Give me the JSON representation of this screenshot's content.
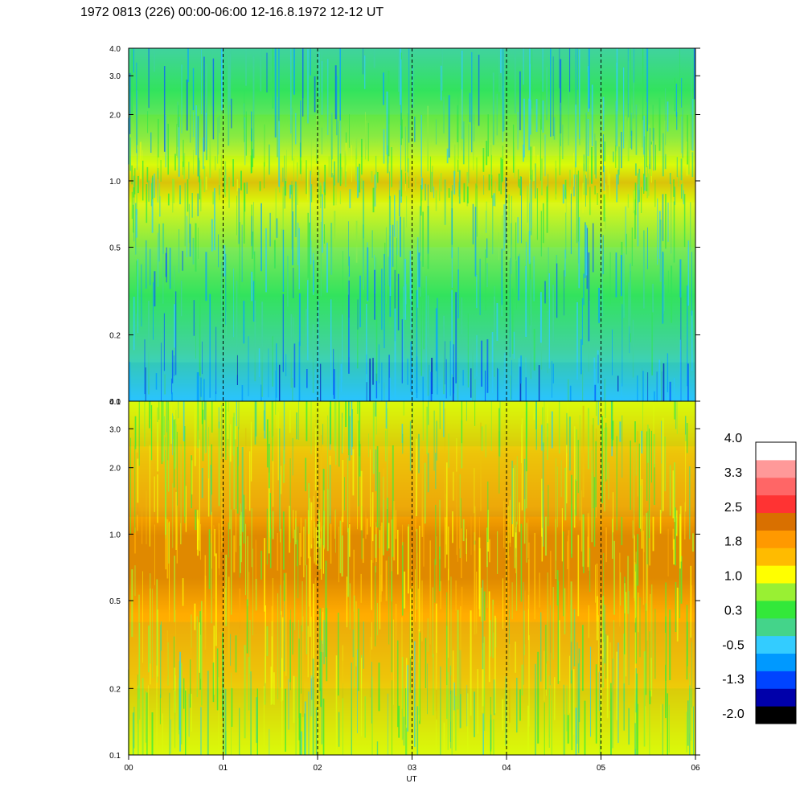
{
  "chart_data": {
    "type": "heatmap",
    "title": "1972 0813 (226) 00:00-06:00 12-16.8.1972  12-12 UT",
    "xlabel": "UT",
    "x_ticks": [
      "00",
      "01",
      "02",
      "03",
      "04",
      "05",
      "06"
    ],
    "xlim": [
      0,
      6
    ],
    "y_scale": "log",
    "panels": [
      {
        "name": "upper",
        "ylim": [
          0.1,
          4.0
        ],
        "y_ticks": [
          0.1,
          0.2,
          0.5,
          1.0,
          2.0,
          3.0,
          4.0
        ],
        "y_tick_labels": [
          "0.1",
          "0.2",
          "0.5",
          "1.0",
          "2.0",
          "3.0",
          "4.0"
        ],
        "bands": [
          {
            "y": [
              0.1,
              0.15
            ],
            "level": 3
          },
          {
            "y": [
              0.15,
              0.3
            ],
            "level": 4
          },
          {
            "y": [
              0.3,
              0.5
            ],
            "level": 4
          },
          {
            "y": [
              0.5,
              0.8
            ],
            "level": 5
          },
          {
            "y": [
              0.8,
              1.0
            ],
            "level": 6
          },
          {
            "y": [
              1.0,
              1.3
            ],
            "level": 6
          },
          {
            "y": [
              1.3,
              2.0
            ],
            "level": 5
          },
          {
            "y": [
              2.0,
              4.0
            ],
            "level": 4
          }
        ]
      },
      {
        "name": "lower",
        "ylim": [
          0.1,
          4.0
        ],
        "y_ticks": [
          0.1,
          0.2,
          0.5,
          1.0,
          2.0,
          3.0,
          4.0
        ],
        "y_tick_labels": [
          "0.1",
          "0.2",
          "0.5",
          "1.0",
          "2.0",
          "3.0",
          "4.0"
        ],
        "bands": [
          {
            "y": [
              0.1,
              0.2
            ],
            "level": 6
          },
          {
            "y": [
              0.2,
              0.4
            ],
            "level": 7
          },
          {
            "y": [
              0.4,
              0.8
            ],
            "level": 8
          },
          {
            "y": [
              0.8,
              1.2
            ],
            "level": 8
          },
          {
            "y": [
              1.2,
              2.5
            ],
            "level": 7
          },
          {
            "y": [
              2.5,
              4.0
            ],
            "level": 6
          }
        ]
      }
    ],
    "colorbar": {
      "labels": [
        "4.0",
        "3.3",
        "2.5",
        "1.8",
        "1.0",
        "0.3",
        "-0.5",
        "-1.3",
        "-2.0"
      ],
      "colors": [
        "#000000",
        "#0000aa",
        "#0044ff",
        "#0099ff",
        "#33ccff",
        "#44d48a",
        "#33e83a",
        "#99f033",
        "#ffff00",
        "#ffbb00",
        "#ff9900",
        "#d97000",
        "#ff3333",
        "#ff6666",
        "#ff9999",
        "#ffffff"
      ]
    }
  }
}
